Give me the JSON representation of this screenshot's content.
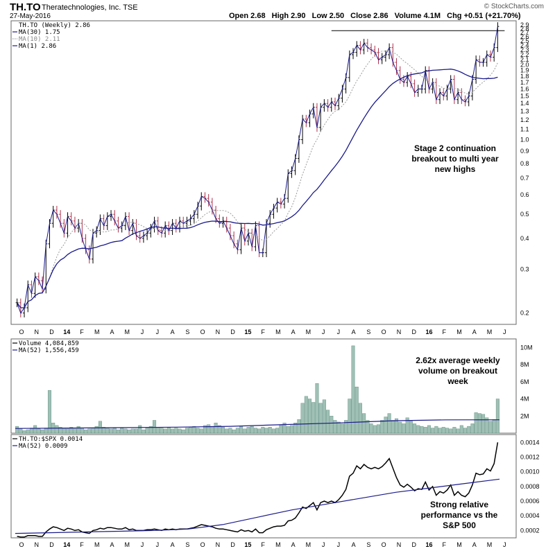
{
  "header": {
    "symbol": "TH.TO",
    "company": "Theratechnologies, Inc. TSE",
    "date": "27-May-2016",
    "brand": "© StockCharts.com",
    "open": "Open 2.68",
    "high": "High 2.90",
    "low": "Low 2.50",
    "close": "Close 2.86",
    "volume": "Volume 4.1M",
    "change": "Chg +0.51 (+21.70%)"
  },
  "colors": {
    "ma30": "#1a1a8c",
    "ma10": "#9a9a9a",
    "up": "#000000",
    "down": "#b0304a",
    "volume": "#9fc0b5",
    "rs": "#000000"
  },
  "chart_data": [
    {
      "type": "ohlc",
      "legend": [
        "TH.TO (Weekly) 2.86",
        "MA(30) 1.75",
        "MA(10) 2.11",
        "MA(1) 2.86"
      ],
      "yscale": "log",
      "ylim": [
        0.18,
        2.9
      ],
      "yticks": [
        "0.2",
        "0.3",
        "0.4",
        "0.5",
        "0.6",
        "0.7",
        "0.8",
        "0.9",
        "1.0",
        "1.1",
        "1.2",
        "1.3",
        "1.4",
        "1.5",
        "1.6",
        "1.7",
        "1.8",
        "1.9",
        "2.0",
        "2.1",
        "2.2",
        "2.3",
        "2.4",
        "2.5",
        "2.6",
        "2.7",
        "2.8",
        "2.9"
      ],
      "x_labels": [
        "O",
        "N",
        "D",
        "14",
        "F",
        "M",
        "A",
        "M",
        "J",
        "J",
        "A",
        "S",
        "O",
        "N",
        "D",
        "15",
        "F",
        "M",
        "A",
        "M",
        "J",
        "J",
        "A",
        "S",
        "O",
        "N",
        "D",
        "16",
        "F",
        "M",
        "A",
        "M",
        "J"
      ],
      "close": [
        0.22,
        0.2,
        0.21,
        0.26,
        0.24,
        0.28,
        0.27,
        0.25,
        0.38,
        0.46,
        0.52,
        0.5,
        0.46,
        0.42,
        0.49,
        0.47,
        0.44,
        0.46,
        0.4,
        0.36,
        0.33,
        0.42,
        0.43,
        0.48,
        0.45,
        0.49,
        0.5,
        0.47,
        0.44,
        0.45,
        0.49,
        0.43,
        0.46,
        0.41,
        0.4,
        0.41,
        0.42,
        0.44,
        0.47,
        0.43,
        0.42,
        0.45,
        0.43,
        0.46,
        0.44,
        0.47,
        0.46,
        0.47,
        0.48,
        0.5,
        0.54,
        0.59,
        0.58,
        0.56,
        0.52,
        0.48,
        0.46,
        0.47,
        0.44,
        0.41,
        0.38,
        0.36,
        0.44,
        0.39,
        0.42,
        0.37,
        0.45,
        0.35,
        0.35,
        0.46,
        0.5,
        0.53,
        0.56,
        0.55,
        0.58,
        0.73,
        0.75,
        0.84,
        1.0,
        1.21,
        1.17,
        1.27,
        1.35,
        1.12,
        1.35,
        1.4,
        1.35,
        1.42,
        1.37,
        1.47,
        1.6,
        1.78,
        2.2,
        2.25,
        2.4,
        2.3,
        2.45,
        2.35,
        2.3,
        2.25,
        2.1,
        2.15,
        2.2,
        2.35,
        2.05,
        1.9,
        1.75,
        1.7,
        1.8,
        1.68,
        1.55,
        1.6,
        1.6,
        1.9,
        1.6,
        1.7,
        1.45,
        1.55,
        1.5,
        1.6,
        1.75,
        1.45,
        1.55,
        1.45,
        1.42,
        1.5,
        1.75,
        2.1,
        2.05,
        2.05,
        2.2,
        2.15,
        2.35,
        2.86
      ],
      "ma30_last": 1.75,
      "ma10_last": 2.11,
      "resistance": 2.75
    },
    {
      "type": "bar",
      "legend": [
        "Volume 4,084,859",
        "MA(52) 1,556,459"
      ],
      "yticks": [
        "2M",
        "4M",
        "6M",
        "8M",
        "10M"
      ],
      "ylim": [
        0,
        11000000
      ],
      "values_millions": [
        0.8,
        0.5,
        0.3,
        0.4,
        0.6,
        0.9,
        0.5,
        0.4,
        0.6,
        5.0,
        1.2,
        0.9,
        0.7,
        0.6,
        0.5,
        0.7,
        0.5,
        0.8,
        0.6,
        0.4,
        0.5,
        0.6,
        0.8,
        1.4,
        0.7,
        0.6,
        0.5,
        0.6,
        0.4,
        0.6,
        0.5,
        0.4,
        0.5,
        0.5,
        0.9,
        0.4,
        0.6,
        0.8,
        1.5,
        0.7,
        0.6,
        0.5,
        0.7,
        0.5,
        0.6,
        0.5,
        0.4,
        0.6,
        0.7,
        0.8,
        0.6,
        0.5,
        0.9,
        1.0,
        0.8,
        1.2,
        0.9,
        0.7,
        0.5,
        0.6,
        0.4,
        0.6,
        0.8,
        0.5,
        0.7,
        0.8,
        0.6,
        0.5,
        0.7,
        0.6,
        0.7,
        0.5,
        0.6,
        0.9,
        1.2,
        0.8,
        0.9,
        1.2,
        1.6,
        3.5,
        4.3,
        4.0,
        3.6,
        5.8,
        3.5,
        3.9,
        2.7,
        2.0,
        1.5,
        1.3,
        1.1,
        1.5,
        4.0,
        10.2,
        5.4,
        3.5,
        2.3,
        1.5,
        1.1,
        0.9,
        1.0,
        1.5,
        1.9,
        2.3,
        1.5,
        1.7,
        1.3,
        1.1,
        1.8,
        1.4,
        1.1,
        0.9,
        0.8,
        0.7,
        0.9,
        0.6,
        0.8,
        0.6,
        0.7,
        0.6,
        0.5,
        0.7,
        0.5,
        0.9,
        0.6,
        0.8,
        1.1,
        2.4,
        2.3,
        2.2,
        1.8,
        1.4,
        1.6,
        4.0
      ],
      "ma52": [
        0.55,
        0.6,
        0.65,
        0.7,
        0.8,
        1.0,
        1.2,
        1.45,
        1.55,
        1.56
      ]
    },
    {
      "type": "line",
      "legend": [
        "TH.TO:$SPX 0.0014",
        "MA(52) 0.0009"
      ],
      "yticks": [
        "0.0002",
        "0.0004",
        "0.0006",
        "0.0008",
        "0.0010",
        "0.0012",
        "0.0014"
      ],
      "ylim": [
        0.0001,
        0.00145
      ],
      "values": [
        0.00012,
        0.00011,
        0.00011,
        0.00013,
        0.00013,
        0.00013,
        0.00012,
        0.00012,
        0.00018,
        0.00022,
        0.00025,
        0.00024,
        0.00022,
        0.0002,
        0.00023,
        0.00022,
        0.0002,
        0.00021,
        0.00018,
        0.00017,
        0.00016,
        0.0002,
        0.00021,
        0.00023,
        0.00022,
        0.00024,
        0.00024,
        0.00023,
        0.00022,
        0.00022,
        0.00024,
        0.00021,
        0.00022,
        0.0002,
        0.0002,
        0.0002,
        0.00021,
        0.00021,
        0.00022,
        0.00021,
        0.0002,
        0.00022,
        0.00021,
        0.00022,
        0.00021,
        0.00022,
        0.00022,
        0.00022,
        0.00023,
        0.00024,
        0.00026,
        0.00028,
        0.00027,
        0.00026,
        0.00025,
        0.00023,
        0.00022,
        0.00022,
        0.00021,
        0.0002,
        0.00019,
        0.00018,
        0.00021,
        0.00019,
        0.0002,
        0.00018,
        0.00022,
        0.00017,
        0.00017,
        0.00021,
        0.00023,
        0.00025,
        0.00026,
        0.00026,
        0.00027,
        0.00033,
        0.00034,
        0.00037,
        0.00044,
        0.00052,
        0.0005,
        0.00054,
        0.00058,
        0.00048,
        0.00058,
        0.0006,
        0.00058,
        0.0006,
        0.00058,
        0.00062,
        0.00068,
        0.00076,
        0.00094,
        0.00098,
        0.00108,
        0.00104,
        0.0011,
        0.00106,
        0.00104,
        0.00106,
        0.00104,
        0.00107,
        0.00112,
        0.00118,
        0.00105,
        0.00092,
        0.00082,
        0.00079,
        0.00083,
        0.00079,
        0.00074,
        0.00077,
        0.00076,
        0.00086,
        0.00075,
        0.0008,
        0.00068,
        0.00073,
        0.00071,
        0.00075,
        0.00082,
        0.00068,
        0.00073,
        0.00068,
        0.00066,
        0.00071,
        0.00082,
        0.00098,
        0.00096,
        0.00097,
        0.00104,
        0.00101,
        0.00111,
        0.0014
      ],
      "ma52": [
        0.00016,
        0.00017,
        0.00018,
        0.00019,
        0.0002,
        0.00022,
        0.00028,
        0.00038,
        0.00048,
        0.00056,
        0.00064,
        0.00072,
        0.00078,
        0.00084,
        0.0009
      ]
    }
  ],
  "annotations": {
    "price": [
      "Stage 2 continuation",
      "breakout to multi year",
      "new highs"
    ],
    "volume": [
      "2.62x average weekly",
      "volume on breakout",
      "week"
    ],
    "rs": [
      "Strong relative",
      "performance vs the",
      "S&P 500"
    ]
  }
}
